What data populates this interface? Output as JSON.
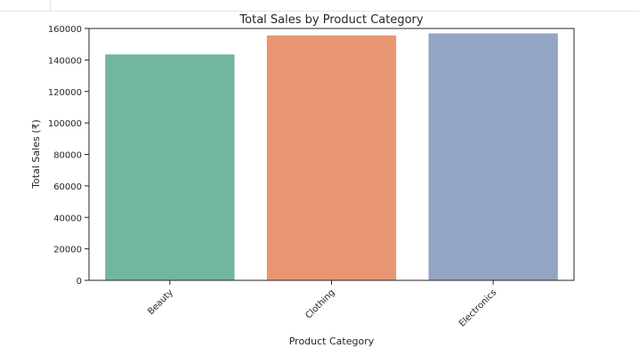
{
  "chart_data": {
    "type": "bar",
    "title": "Total Sales by Product Category",
    "xlabel": "Product Category",
    "ylabel": "Total Sales (₹)",
    "categories": [
      "Beauty",
      "Clothing",
      "Electronics"
    ],
    "values": [
      143515,
      155580,
      156905
    ],
    "colors": [
      "#72b6a0",
      "#e99675",
      "#94a4c3"
    ],
    "ylim": [
      0,
      160000
    ],
    "yticks": [
      0,
      20000,
      40000,
      60000,
      80000,
      100000,
      120000,
      140000,
      160000
    ],
    "ytick_labels": [
      "0",
      "20000",
      "40000",
      "60000",
      "80000",
      "100000",
      "120000",
      "140000",
      "160000"
    ],
    "grid": false,
    "legend": "none"
  }
}
